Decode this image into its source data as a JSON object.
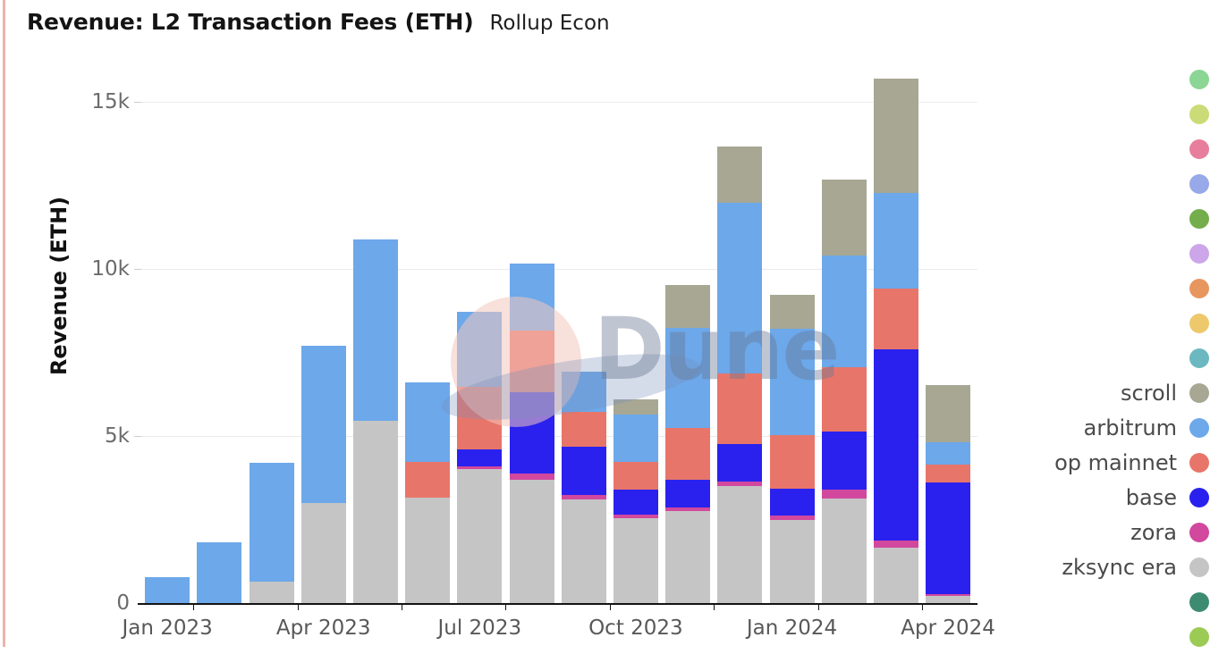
{
  "header": {
    "title": "Revenue: L2 Transaction Fees (ETH)",
    "subtitle": "Rollup Econ"
  },
  "watermark": {
    "text": "Dune"
  },
  "y_axis": {
    "title": "Revenue (ETH)"
  },
  "chart_data": {
    "type": "bar",
    "stacked": true,
    "stack_order": "series listed bottom-to-top",
    "title": "Revenue: L2 Transaction Fees (ETH)",
    "subtitle": "Rollup Econ",
    "xlabel": "",
    "ylabel": "Revenue (ETH)",
    "units": "ETH",
    "ylim": [
      0,
      15000
    ],
    "grid": true,
    "y_ticks": [
      {
        "value": 0,
        "label": "0"
      },
      {
        "value": 5000,
        "label": "5k"
      },
      {
        "value": 10000,
        "label": "10k"
      },
      {
        "value": 15000,
        "label": "15k"
      }
    ],
    "categories": [
      "Jan 2023",
      "Feb 2023",
      "Mar 2023",
      "Apr 2023",
      "May 2023",
      "Jun 2023",
      "Jul 2023",
      "Aug 2023",
      "Sep 2023",
      "Oct 2023",
      "Nov 2023",
      "Dec 2023",
      "Jan 2024",
      "Feb 2024",
      "Mar 2024",
      "Apr 2024"
    ],
    "x_tick_labels": [
      {
        "index": 0,
        "label": "Jan 2023"
      },
      {
        "index": 3,
        "label": "Apr 2023"
      },
      {
        "index": 6,
        "label": "Jul 2023"
      },
      {
        "index": 9,
        "label": "Oct 2023"
      },
      {
        "index": 12,
        "label": "Jan 2024"
      },
      {
        "index": 15,
        "label": "Apr 2024"
      }
    ],
    "series": [
      {
        "name": "zksync era",
        "color": "#c5c5c6",
        "values": [
          0,
          0,
          650,
          3000,
          5450,
          3150,
          4000,
          3700,
          3100,
          2540,
          2760,
          3500,
          2500,
          3130,
          1650,
          210
        ]
      },
      {
        "name": "zora",
        "color": "#d1489e",
        "values": [
          0,
          0,
          0,
          0,
          0,
          0,
          90,
          180,
          130,
          110,
          110,
          130,
          120,
          260,
          220,
          60
        ]
      },
      {
        "name": "base",
        "color": "#2a21ee",
        "values": [
          0,
          0,
          0,
          0,
          0,
          0,
          500,
          2430,
          1450,
          760,
          810,
          1130,
          800,
          1740,
          5720,
          3350
        ]
      },
      {
        "name": "op mainnet",
        "color": "#e8756a",
        "values": [
          0,
          0,
          0,
          0,
          0,
          1080,
          1880,
          1840,
          1050,
          810,
          1570,
          2100,
          1600,
          1920,
          1830,
          530
        ]
      },
      {
        "name": "arbitrum",
        "color": "#6ca8ea",
        "values": [
          790,
          1830,
          3550,
          4700,
          5430,
          2380,
          2250,
          2000,
          1200,
          1430,
          3000,
          5130,
          3200,
          3350,
          2860,
          670
        ]
      },
      {
        "name": "scroll",
        "color": "#a7a794",
        "values": [
          0,
          0,
          0,
          0,
          0,
          0,
          0,
          0,
          0,
          450,
          1260,
          1660,
          1000,
          2280,
          3420,
          1700
        ]
      }
    ],
    "legend_position": "right"
  },
  "legend": {
    "items": [
      {
        "label": "",
        "color": "#8bd694"
      },
      {
        "label": "",
        "color": "#cbdb77"
      },
      {
        "label": "",
        "color": "#e87e9e"
      },
      {
        "label": "",
        "color": "#97a9e8"
      },
      {
        "label": "",
        "color": "#74ae4c"
      },
      {
        "label": "",
        "color": "#cca6e8"
      },
      {
        "label": "",
        "color": "#e8965f"
      },
      {
        "label": "",
        "color": "#edc96c"
      },
      {
        "label": "",
        "color": "#6cb8c0"
      },
      {
        "label": "scroll",
        "color": "#a7a794"
      },
      {
        "label": "arbitrum",
        "color": "#6ca8ea"
      },
      {
        "label": "op mainnet",
        "color": "#e8756a"
      },
      {
        "label": "base",
        "color": "#2a21ee"
      },
      {
        "label": "zora",
        "color": "#d1489e"
      },
      {
        "label": "zksync era",
        "color": "#c5c5c6"
      },
      {
        "label": "",
        "color": "#3d8c72"
      },
      {
        "label": "",
        "color": "#9ccb55"
      }
    ]
  }
}
